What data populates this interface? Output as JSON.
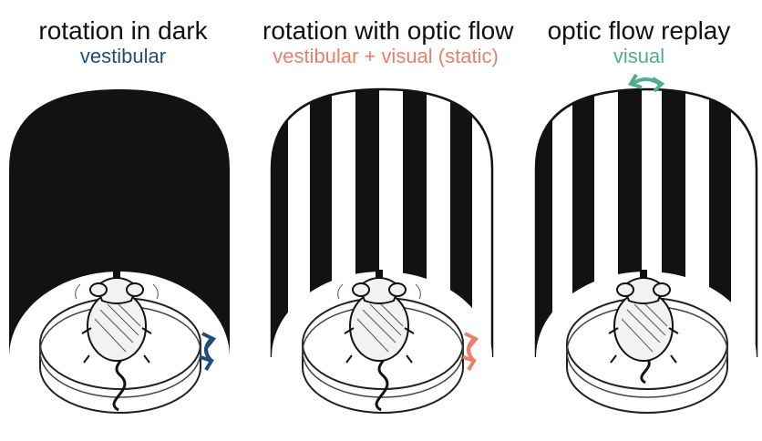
{
  "panels": [
    {
      "title": "rotation in dark",
      "subtitle": "vestibular",
      "subtitle_color": "#1f4e79",
      "arrow_color": "#1f4e79",
      "drum": "dark"
    },
    {
      "title": "rotation with optic flow",
      "subtitle": "vestibular + visual (static)",
      "subtitle_color": "#e9806a",
      "arrow_color": "#e9806a",
      "drum": "striped"
    },
    {
      "title": "optic flow replay",
      "subtitle": "visual",
      "subtitle_color": "#4fae8f",
      "arrow_color": "#4fae8f",
      "drum": "striped"
    }
  ],
  "icons": {
    "mouse": "mouse-icon",
    "platform": "turntable-icon",
    "rotation_arrow": "rotation-arrow-icon"
  }
}
